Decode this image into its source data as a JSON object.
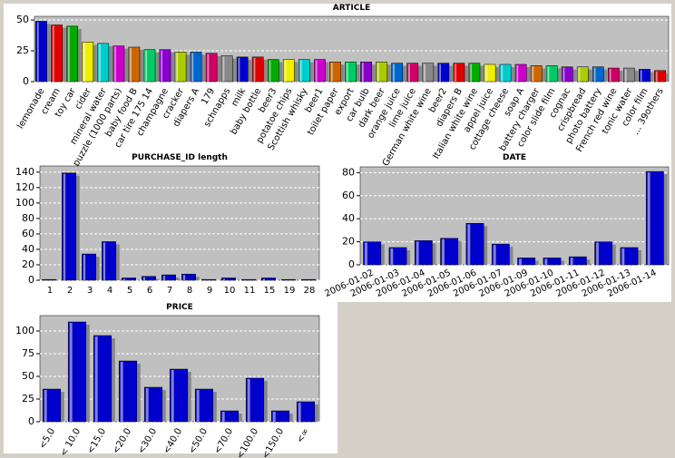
{
  "chart_data": [
    {
      "type": "bar",
      "title": "ARTICLE",
      "categories": [
        "lemonade",
        "cream",
        "toy car",
        "cider",
        "mineral water",
        "puzzle (1000 parts)",
        "baby food B",
        "car tire 175 14",
        "champagne",
        "cracker",
        "diapers A",
        "179",
        "schnapps",
        "milk",
        "baby bottle",
        "beer3",
        "potatoe chips",
        "Scottish whisky",
        "beer1",
        "toilet paper",
        "export",
        "car bulb",
        "dark beer",
        "orange juice",
        "lime juice",
        "German white wine",
        "beer2",
        "diapers B",
        "Italian white wine",
        "appel juice",
        "cottage cheese",
        "soap A",
        "battery charger",
        "color slide film",
        "cognac",
        "crispbread",
        "photo battery",
        "French red wine",
        "tonic water",
        "color film",
        "... 39others"
      ],
      "values": [
        49,
        46,
        45,
        32,
        31,
        29,
        28,
        26,
        26,
        24,
        24,
        23,
        21,
        20,
        20,
        18,
        18,
        18,
        18,
        16,
        16,
        16,
        16,
        15,
        15,
        15,
        15,
        15,
        15,
        14,
        14,
        14,
        13,
        13,
        12,
        12,
        12,
        11,
        11,
        10,
        9
      ],
      "colors": [
        "#0000cc",
        "#dd0000",
        "#00aa00",
        "#eeee00",
        "#00cccc",
        "#cc00cc",
        "#cc6600",
        "#00cc66",
        "#8800cc",
        "#aacc00",
        "#0066cc",
        "#cc0066",
        "#888888"
      ],
      "ylim": [
        0,
        53
      ],
      "yticks": [
        0,
        25,
        50
      ],
      "grid": true
    },
    {
      "type": "bar",
      "title": "PURCHASE_ID length",
      "categories": [
        "1",
        "2",
        "3",
        "4",
        "5",
        "6",
        "7",
        "8",
        "9",
        "10",
        "11",
        "15",
        "19",
        "28"
      ],
      "values": [
        1,
        139,
        34,
        50,
        3,
        5,
        7,
        8,
        1,
        3,
        1,
        3,
        1,
        1
      ],
      "color": "#0000cc",
      "ylim": [
        0,
        148
      ],
      "yticks": [
        0,
        20,
        40,
        60,
        80,
        100,
        120,
        140
      ],
      "grid": true
    },
    {
      "type": "bar",
      "title": "DATE",
      "categories": [
        "2006-01-02",
        "2006-01-03",
        "2006-01-04",
        "2006-01-05",
        "2006-01-06",
        "2006-01-07",
        "2006-01-09",
        "2006-01-10",
        "2006-01-11",
        "2006-01-12",
        "2006-01-13",
        "2006-01-14"
      ],
      "values": [
        20,
        15,
        21,
        23,
        36,
        18,
        6,
        6,
        7,
        20,
        15,
        81
      ],
      "color": "#0000cc",
      "ylim": [
        0,
        85
      ],
      "yticks": [
        0,
        20,
        40,
        60,
        80
      ],
      "grid": true
    },
    {
      "type": "bar",
      "title": "PRICE",
      "categories": [
        "<5.0",
        "< 10.0",
        "<15.0",
        "<20.0",
        "<30.0",
        "<40.0",
        "<50.0",
        "<70.0",
        "<100.0",
        "<150.0",
        "<∞"
      ],
      "values": [
        36,
        110,
        95,
        67,
        38,
        58,
        36,
        12,
        48,
        12,
        22
      ],
      "color": "#0000cc",
      "ylim": [
        0,
        117
      ],
      "yticks": [
        0,
        25,
        50,
        75,
        100
      ],
      "grid": true
    }
  ]
}
